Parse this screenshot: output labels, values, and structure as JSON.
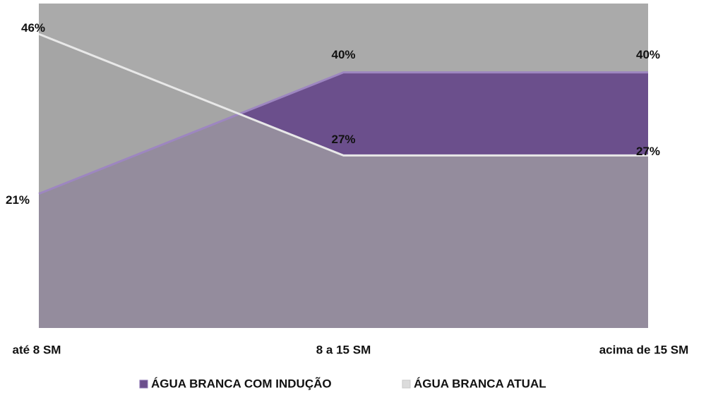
{
  "chart_data": {
    "type": "area",
    "categories": [
      "até 8 SM",
      "8 a 15 SM",
      "acima de 15 SM"
    ],
    "series": [
      {
        "name": "ÁGUA BRANCA COM INDUÇÃO",
        "color": "#6b4f8c",
        "values": [
          21,
          40,
          40
        ],
        "value_labels": [
          "21%",
          "40%",
          "40%"
        ]
      },
      {
        "name": "ÁGUA BRANCA ATUAL",
        "color": "#a3a3a3",
        "values": [
          46,
          27,
          27
        ],
        "value_labels": [
          "46%",
          "27%",
          "27%"
        ]
      }
    ],
    "ylim": [
      0,
      51
    ],
    "legend": "bottom"
  }
}
